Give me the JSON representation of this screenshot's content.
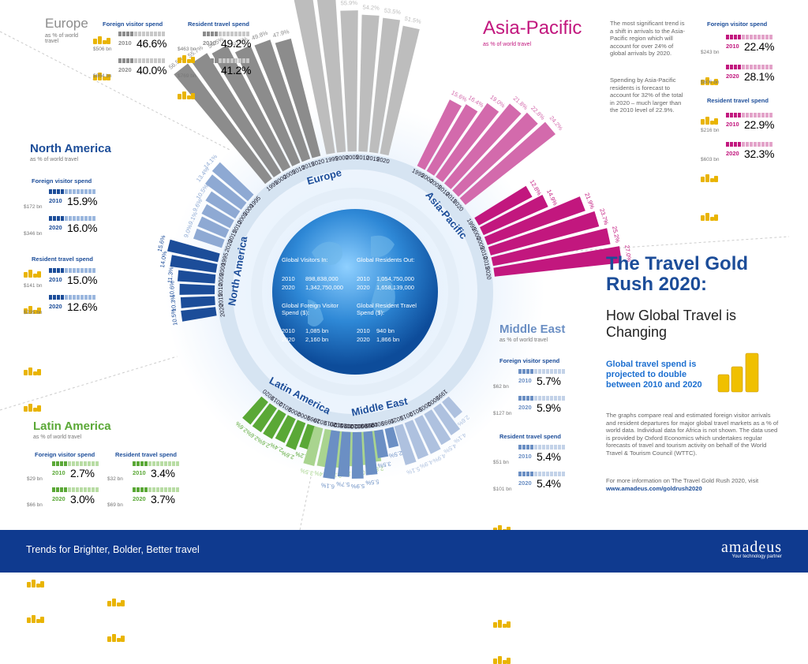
{
  "europe": {
    "title": "Europe",
    "subtitle": "as % of world travel",
    "foreign_h": "Foreign visitor spend",
    "resident_h": "Resident travel spend",
    "f2010_bn": "$506 bn",
    "f2010": "46.6%",
    "f2020_bn": "$864 bn",
    "f2020": "40.0%",
    "r2010_bn": "$463 bn",
    "r2010": "49.2%",
    "r2020_bn": "$769 bn",
    "r2020": "41.2%",
    "color": "#8c8c8c"
  },
  "asia": {
    "title": "Asia-Pacific",
    "subtitle": "as % of world travel",
    "foreign_h": "Foreign visitor spend",
    "resident_h": "Resident travel spend",
    "f2010_bn": "$243 bn",
    "f2010": "22.4%",
    "f2020_bn": "$606 bn",
    "f2020": "28.1%",
    "r2010_bn": "$216 bn",
    "r2010": "22.9%",
    "r2020_bn": "$603 bn",
    "r2020": "32.3%",
    "color": "#c2177e"
  },
  "asia_text1": "The most significant trend is a shift in arrivals to the Asia-Pacific region which will account for over 24% of global arrivals by 2020.",
  "asia_text2": "Spending by Asia-Pacific residents is forecast to account for 32% of the total in 2020 – much larger than the 2010 level of 22.9%.",
  "na": {
    "title": "North America",
    "subtitle": "as % of world travel",
    "foreign_h": "Foreign visitor spend",
    "resident_h": "Resident travel spend",
    "f2010_bn": "$172 bn",
    "f2010": "15.9%",
    "f2020_bn": "$346 bn",
    "f2020": "16.0%",
    "r2010_bn": "$141 bn",
    "r2010": "15.0%",
    "r2020_bn": "$235 bn",
    "r2020": "12.6%",
    "color": "#1c4d99"
  },
  "la": {
    "title": "Latin America",
    "subtitle": "as % of world travel",
    "foreign_h": "Foreign visitor spend",
    "resident_h": "Resident travel spend",
    "f2010_bn": "$29 bn",
    "f2010": "2.7%",
    "f2020_bn": "$66 bn",
    "f2020": "3.0%",
    "r2010_bn": "$32 bn",
    "r2010": "3.4%",
    "r2020_bn": "$69 bn",
    "r2020": "3.7%",
    "color": "#5aa836"
  },
  "me": {
    "title": "Middle East",
    "subtitle": "as % of world travel",
    "foreign_h": "Foreign visitor spend",
    "resident_h": "Resident travel spend",
    "f2010_bn": "$62 bn",
    "f2010": "5.7%",
    "f2020_bn": "$127 bn",
    "f2020": "5.9%",
    "r2010_bn": "$51 bn",
    "r2010": "5.4%",
    "r2020_bn": "$101 bn",
    "r2020": "5.4%",
    "color": "#6b8fc4"
  },
  "year2010": "2010",
  "year2020": "2020",
  "main_title": "The Travel Gold Rush 2020:",
  "main_sub": "How Global Travel is Changing",
  "highlight": "Global travel spend is projected to double between 2010 and 2020",
  "para1": "The graphs compare real and estimated foreign visitor arrivals and resident departures for major global travel markets as a % of world data. Individual data for Africa is not shown. The data used is provided by Oxford Economics which undertakes regular forecasts of travel and tourism activity on behalf of the World Travel & Tourism Council (WTTC).",
  "para2": "For more information on The Travel Gold Rush 2020, visit",
  "link": "www.amadeus.com/goldrush2020",
  "globe": {
    "visitors_in": "Global Visitors In:",
    "residents_out": "Global Residents Out:",
    "v2010": "898,838,000",
    "v2020": "1,342,750,000",
    "r2010": "1,054,750,000",
    "r2020": "1,658,139,000",
    "fspend": "Global Foreign Visitor Spend ($):",
    "rspend": "Global Resident Travel Spend ($):",
    "fs2010": "1,085 bn",
    "fs2020": "2,160 bn",
    "rs2010": "940 bn",
    "rs2020": "1,866 bn"
  },
  "ring_labels": {
    "europe": "Europe",
    "asia": "Asia-Pacific",
    "na": "North America",
    "la": "Latin America",
    "me": "Middle East"
  },
  "series_labels": {
    "visitors_in": "Visitors In",
    "residents_out": "Residents Out"
  },
  "chart_data": [
    {
      "type": "bar",
      "region": "Europe",
      "series": [
        {
          "name": "Visitors In",
          "years": [
            "1995",
            "2000",
            "2005",
            "2010",
            "2015",
            "2020"
          ],
          "values": [
            56.5,
            55.7,
            54.5,
            50.5,
            49.8,
            47.9
          ]
        },
        {
          "name": "Residents Out",
          "years": [
            "1995",
            "2000",
            "2005",
            "2010",
            "2015",
            "2020"
          ],
          "values": [
            64.7,
            61.6,
            55.9,
            54.2,
            53.5,
            51.5
          ]
        }
      ]
    },
    {
      "type": "bar",
      "region": "Asia-Pacific",
      "series": [
        {
          "name": "Visitors In",
          "years": [
            "1995",
            "2000",
            "2005",
            "2010",
            "2015",
            "2020"
          ],
          "values": [
            15.6,
            16.4,
            19.0,
            21.8,
            22.8,
            24.2
          ]
        },
        {
          "name": "Residents Out",
          "years": [
            "1995",
            "2000",
            "2005",
            "2010",
            "2015",
            "2020"
          ],
          "values": [
            12.8,
            14.9,
            21.9,
            23.7,
            25.2,
            27.0
          ]
        }
      ]
    },
    {
      "type": "bar",
      "region": "North America",
      "series": [
        {
          "name": "Visitors In",
          "years": [
            "2020",
            "2015",
            "2010",
            "2005",
            "2000",
            "1995"
          ],
          "values": [
            10.5,
            10.3,
            10.6,
            11.3,
            14.0,
            15.6
          ]
        },
        {
          "name": "Residents Out",
          "years": [
            "2020",
            "2015",
            "2010",
            "2005",
            "2000",
            "1995"
          ],
          "values": [
            9.0,
            9.1,
            9.6,
            10.5,
            13.4,
            14.1
          ]
        }
      ]
    },
    {
      "type": "bar",
      "region": "Latin America",
      "series": [
        {
          "name": "Residents Out",
          "years": [
            "2020",
            "2015",
            "2010",
            "2005",
            "2000",
            "1995"
          ],
          "values": [
            2.6,
            2.6,
            2.6,
            2.4,
            2.6,
            2.2
          ]
        },
        {
          "name": "Visitors In",
          "years": [
            "2020",
            "2015",
            "2010",
            "2005",
            "2000",
            "1995"
          ],
          "values": [
            3.5,
            3.4,
            3.3,
            3.1,
            3.0,
            2.8
          ]
        }
      ]
    },
    {
      "type": "bar",
      "region": "Middle East",
      "series": [
        {
          "name": "Residents Out",
          "years": [
            "2020",
            "2015",
            "2010",
            "2005",
            "2000",
            "1995"
          ],
          "values": [
            6.1,
            5.7,
            5.9,
            5.5,
            3.5,
            2.5
          ]
        },
        {
          "name": "Visitors In",
          "years": [
            "2020",
            "2015",
            "2010",
            "2005",
            "2000",
            "1995"
          ],
          "values": [
            5.1,
            4.9,
            4.9,
            4.5,
            4.1,
            2.6
          ]
        }
      ]
    }
  ],
  "footer": {
    "tagline": "Trends for Brighter, Bolder, Better travel",
    "brand": "amadeus",
    "brand_sub": "Your technology partner"
  }
}
